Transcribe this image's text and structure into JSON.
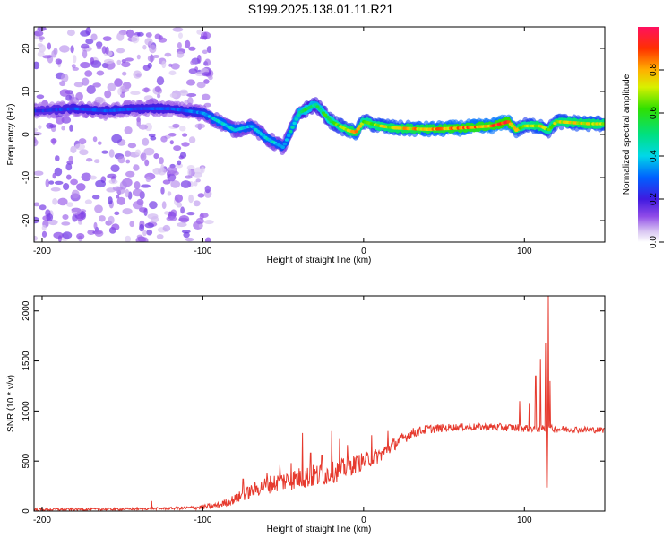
{
  "title": "S199.2025.138.01.11.R21",
  "chart_data": [
    {
      "type": "heatmap",
      "xlabel": "Height of straight line (km)",
      "ylabel": "Frequency (Hz)",
      "xlim": [
        -205,
        150
      ],
      "ylim": [
        -25,
        25
      ],
      "xticks": [
        -200,
        -100,
        0,
        100
      ],
      "yticks": [
        -20,
        -10,
        0,
        10,
        20
      ],
      "colorbar": {
        "label": "Normalized spectral amplitude",
        "range": [
          0,
          1
        ],
        "ticks": [
          "0.0",
          "0.2",
          "0.4",
          "0.6",
          "0.8"
        ],
        "colormap": "rainbow (violet to red)"
      },
      "ridge": {
        "description": "dominant frequency ridge",
        "x": [
          -200,
          -180,
          -160,
          -140,
          -120,
          -100,
          -90,
          -80,
          -70,
          -60,
          -50,
          -40,
          -35,
          -30,
          -25,
          -20,
          -15,
          -10,
          -5,
          0,
          10,
          20,
          40,
          60,
          80,
          90,
          95,
          100,
          110,
          115,
          120,
          140,
          150
        ],
        "y": [
          5.5,
          6,
          5.5,
          6,
          6,
          5,
          3,
          1,
          2,
          -1,
          -3,
          5,
          6,
          7,
          5,
          3,
          2,
          1,
          0.5,
          3,
          2,
          1.5,
          1.2,
          1.5,
          2,
          3,
          1,
          2,
          2,
          1,
          3,
          2.5,
          2.5
        ],
        "amplitude": [
          0.25,
          0.3,
          0.3,
          0.3,
          0.3,
          0.35,
          0.45,
          0.45,
          0.4,
          0.45,
          0.4,
          0.55,
          0.6,
          0.55,
          0.6,
          0.65,
          0.7,
          0.75,
          0.85,
          0.7,
          0.75,
          0.8,
          0.85,
          0.9,
          0.9,
          0.95,
          0.8,
          0.7,
          0.8,
          0.7,
          0.75,
          0.8,
          0.75
        ]
      },
      "scatter_region": {
        "x": [
          -205,
          -95
        ],
        "y": [
          -25,
          25
        ],
        "amplitude": "low (0.05-0.15)"
      }
    },
    {
      "type": "line",
      "xlabel": "Height of straight line (km)",
      "ylabel": "SNR (10 * v/v)",
      "xlim": [
        -205,
        150
      ],
      "ylim": [
        0,
        2150
      ],
      "xticks": [
        -200,
        -100,
        0,
        100
      ],
      "yticks": [
        0,
        500,
        1000,
        1500,
        2000
      ],
      "color": "#e63a2e",
      "trend": {
        "x": [
          -205,
          -150,
          -110,
          -100,
          -90,
          -80,
          -70,
          -60,
          -50,
          -40,
          -30,
          -20,
          -10,
          0,
          10,
          20,
          30,
          40,
          60,
          80,
          100,
          120,
          150
        ],
        "y": [
          15,
          20,
          30,
          40,
          60,
          120,
          200,
          260,
          300,
          330,
          350,
          380,
          440,
          500,
          560,
          680,
          780,
          820,
          840,
          840,
          830,
          820,
          810
        ]
      },
      "noise": {
        "x": [
          -205,
          -120,
          -90,
          -60,
          -30,
          0,
          30,
          60,
          100,
          150
        ],
        "amp": [
          12,
          12,
          30,
          90,
          120,
          90,
          50,
          35,
          40,
          30
        ]
      },
      "spikes": [
        {
          "x": -132,
          "y": 100
        },
        {
          "x": -75,
          "y": 320
        },
        {
          "x": -60,
          "y": 380
        },
        {
          "x": -52,
          "y": 460
        },
        {
          "x": -45,
          "y": 480
        },
        {
          "x": -38,
          "y": 780
        },
        {
          "x": -33,
          "y": 580
        },
        {
          "x": -26,
          "y": 560
        },
        {
          "x": -20,
          "y": 800
        },
        {
          "x": -15,
          "y": 720
        },
        {
          "x": -10,
          "y": 660
        },
        {
          "x": 5,
          "y": 760
        },
        {
          "x": 15,
          "y": 800
        },
        {
          "x": 97,
          "y": 1100
        },
        {
          "x": 103,
          "y": 1080
        },
        {
          "x": 107,
          "y": 1350
        },
        {
          "x": 110,
          "y": 1520
        },
        {
          "x": 113,
          "y": 1680
        },
        {
          "x": 115,
          "y": 2150
        },
        {
          "x": 116,
          "y": 1300
        },
        {
          "x": 114,
          "y": 240
        }
      ]
    }
  ]
}
